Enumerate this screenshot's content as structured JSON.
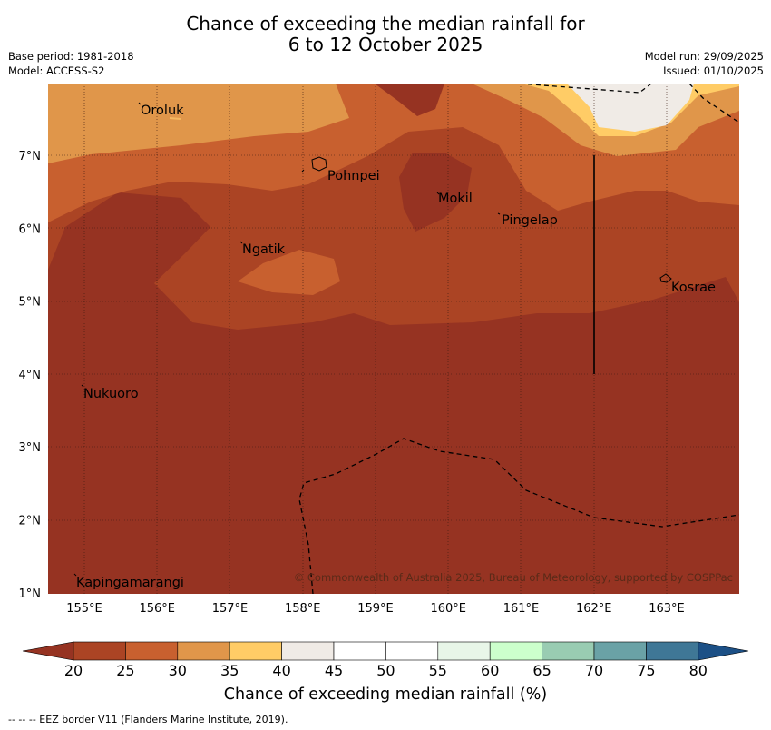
{
  "title_line1": "Chance of exceeding the median rainfall for",
  "title_line2": "6 to 12 October 2025",
  "base_period": "Base period: 1981-2018",
  "model": "Model: ACCESS-S2",
  "model_run": "Model run: 29/09/2025",
  "issued": "Issued: 01/10/2025",
  "copyright": "© Commonwealth of Australia 2025, Bureau of Meteorology, supported by COSPPac",
  "lon_labels": [
    "155°E",
    "156°E",
    "157°E",
    "158°E",
    "159°E",
    "160°E",
    "161°E",
    "162°E",
    "163°E"
  ],
  "lat_labels": [
    "7°N",
    "6°N",
    "5°N",
    "4°N",
    "3°N",
    "2°N",
    "1°N"
  ],
  "places": {
    "oroluk": "Oroluk",
    "pohnpei": "Pohnpei",
    "mokil": "Mokil",
    "pingelap": "Pingelap",
    "ngatik": "Ngatik",
    "kosrae": "Kosrae",
    "nukuoro": "Nukuoro",
    "kapinga": "Kapingamarangi"
  },
  "colorbar": {
    "ticks": [
      "20",
      "25",
      "30",
      "35",
      "40",
      "45",
      "50",
      "55",
      "60",
      "65",
      "70",
      "75",
      "80"
    ],
    "colors": [
      "#ab4424",
      "#c8602f",
      "#e0964a",
      "#ffcc66",
      "#f0ebe6",
      "#ffffff",
      "#ffffff",
      "#e8f6e8",
      "#ccffcc",
      "#99ccb2",
      "#6aa2a6",
      "#3f7796"
    ],
    "under_color": "#963322",
    "over_color": "#1c5086",
    "label": "Chance of exceeding median rainfall (%)"
  },
  "footnote": "-- -- -- EEZ border V11 (Flanders Marine Institute, 2019)."
}
